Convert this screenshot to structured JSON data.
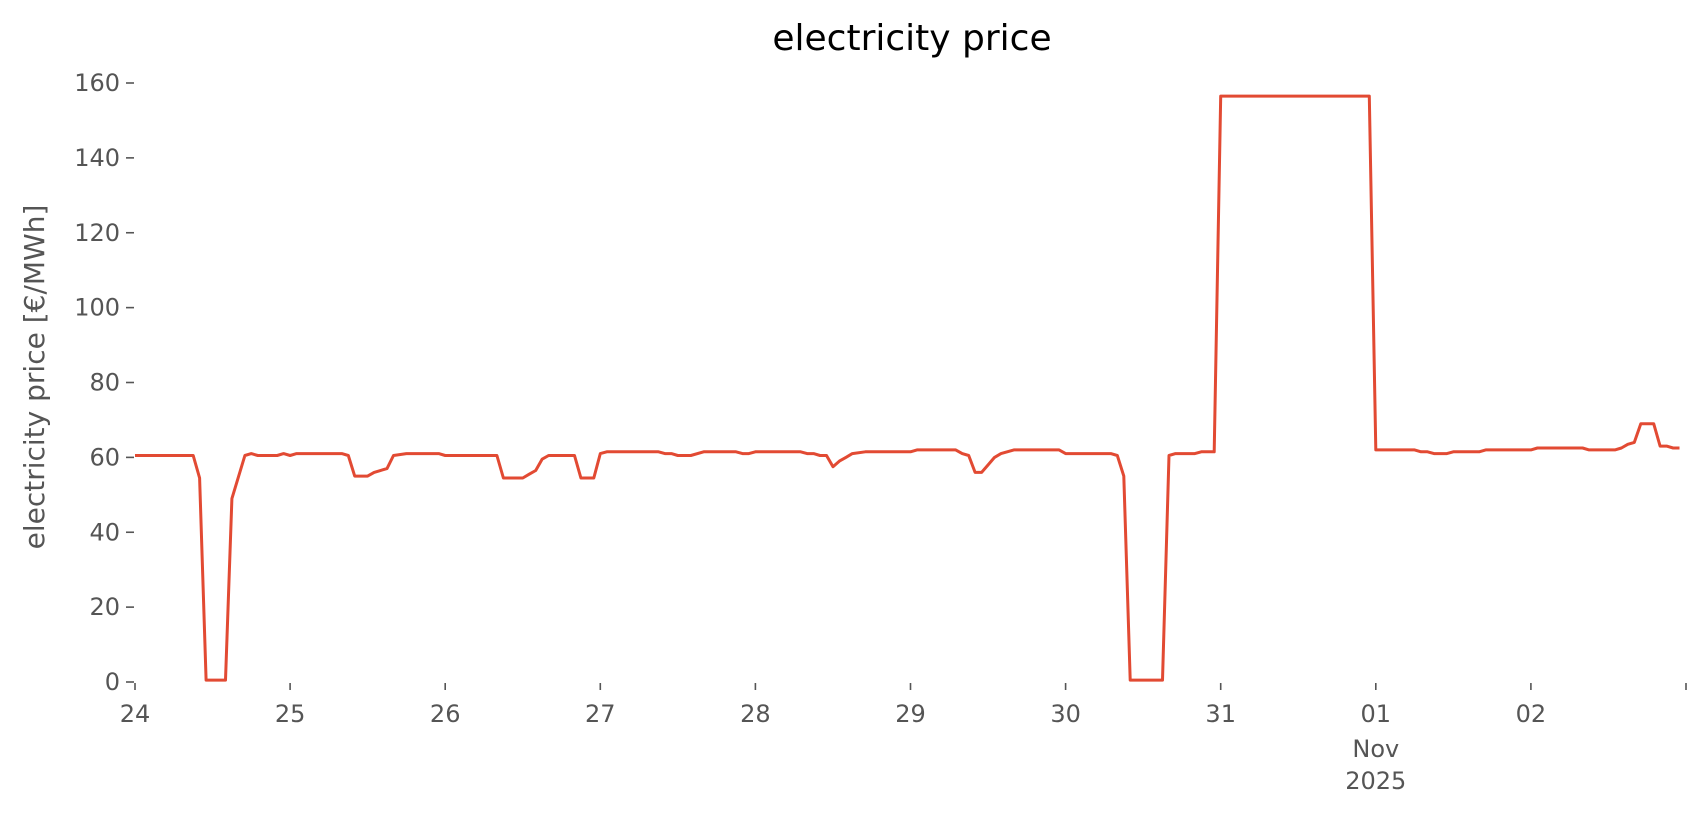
{
  "chart_data": {
    "type": "line",
    "title": "electricity price",
    "xlabel": "",
    "ylabel": "electricity price [€/MWh]",
    "ylim": [
      0,
      160
    ],
    "xlim": [
      "2025-10-24T00:00",
      "2025-11-03T00:00"
    ],
    "grid": false,
    "legend": "none",
    "y_ticks": [
      0,
      20,
      40,
      60,
      80,
      100,
      120,
      140,
      160
    ],
    "x_ticks": [
      {
        "x": "2025-10-24T00:00",
        "label": "24",
        "sub": ""
      },
      {
        "x": "2025-10-25T00:00",
        "label": "25",
        "sub": ""
      },
      {
        "x": "2025-10-26T00:00",
        "label": "26",
        "sub": ""
      },
      {
        "x": "2025-10-27T00:00",
        "label": "27",
        "sub": ""
      },
      {
        "x": "2025-10-28T00:00",
        "label": "28",
        "sub": ""
      },
      {
        "x": "2025-10-29T00:00",
        "label": "29",
        "sub": ""
      },
      {
        "x": "2025-10-30T00:00",
        "label": "30",
        "sub": ""
      },
      {
        "x": "2025-10-31T00:00",
        "label": "31",
        "sub": ""
      },
      {
        "x": "2025-11-01T00:00",
        "label": "01",
        "sub": "Nov\n2025"
      },
      {
        "x": "2025-11-02T00:00",
        "label": "02",
        "sub": ""
      },
      {
        "x": "2025-11-03T00:00",
        "label": "",
        "sub": ""
      }
    ],
    "series": [
      {
        "color": "#e24a33",
        "points": [
          [
            "2025-10-24T00:00",
            60.5
          ],
          [
            "2025-10-24T09:00",
            60.5
          ],
          [
            "2025-10-24T10:00",
            54.5
          ],
          [
            "2025-10-24T11:00",
            0.5
          ],
          [
            "2025-10-24T14:00",
            0.5
          ],
          [
            "2025-10-24T15:00",
            49.0
          ],
          [
            "2025-10-24T17:00",
            60.5
          ],
          [
            "2025-10-24T18:00",
            61.0
          ],
          [
            "2025-10-24T19:00",
            60.5
          ],
          [
            "2025-10-24T22:00",
            60.5
          ],
          [
            "2025-10-24T23:00",
            61.0
          ],
          [
            "2025-10-25T00:00",
            60.5
          ],
          [
            "2025-10-25T01:00",
            61.0
          ],
          [
            "2025-10-25T08:00",
            61.0
          ],
          [
            "2025-10-25T09:00",
            60.5
          ],
          [
            "2025-10-25T10:00",
            55.0
          ],
          [
            "2025-10-25T12:00",
            55.0
          ],
          [
            "2025-10-25T13:00",
            56.0
          ],
          [
            "2025-10-25T15:00",
            57.0
          ],
          [
            "2025-10-25T16:00",
            60.5
          ],
          [
            "2025-10-25T18:00",
            61.0
          ],
          [
            "2025-10-25T23:00",
            61.0
          ],
          [
            "2025-10-26T00:00",
            60.5
          ],
          [
            "2025-10-26T08:00",
            60.5
          ],
          [
            "2025-10-26T09:00",
            54.5
          ],
          [
            "2025-10-26T12:00",
            54.5
          ],
          [
            "2025-10-26T13:00",
            55.5
          ],
          [
            "2025-10-26T14:00",
            56.5
          ],
          [
            "2025-10-26T15:00",
            59.5
          ],
          [
            "2025-10-26T16:00",
            60.5
          ],
          [
            "2025-10-26T20:00",
            60.5
          ],
          [
            "2025-10-26T21:00",
            54.5
          ],
          [
            "2025-10-26T23:00",
            54.5
          ],
          [
            "2025-10-27T00:00",
            61.0
          ],
          [
            "2025-10-27T01:00",
            61.5
          ],
          [
            "2025-10-27T09:00",
            61.5
          ],
          [
            "2025-10-27T10:00",
            61.0
          ],
          [
            "2025-10-27T11:00",
            61.0
          ],
          [
            "2025-10-27T12:00",
            60.5
          ],
          [
            "2025-10-27T14:00",
            60.5
          ],
          [
            "2025-10-27T16:00",
            61.5
          ],
          [
            "2025-10-27T21:00",
            61.5
          ],
          [
            "2025-10-27T22:00",
            61.0
          ],
          [
            "2025-10-27T23:00",
            61.0
          ],
          [
            "2025-10-28T00:00",
            61.5
          ],
          [
            "2025-10-28T07:00",
            61.5
          ],
          [
            "2025-10-28T08:00",
            61.0
          ],
          [
            "2025-10-28T09:00",
            61.0
          ],
          [
            "2025-10-28T10:00",
            60.5
          ],
          [
            "2025-10-28T11:00",
            60.5
          ],
          [
            "2025-10-28T12:00",
            57.5
          ],
          [
            "2025-10-28T13:00",
            59.0
          ],
          [
            "2025-10-28T14:00",
            60.0
          ],
          [
            "2025-10-28T15:00",
            61.0
          ],
          [
            "2025-10-28T17:00",
            61.5
          ],
          [
            "2025-10-29T00:00",
            61.5
          ],
          [
            "2025-10-29T01:00",
            62.0
          ],
          [
            "2025-10-29T07:00",
            62.0
          ],
          [
            "2025-10-29T08:00",
            61.0
          ],
          [
            "2025-10-29T09:00",
            60.5
          ],
          [
            "2025-10-29T10:00",
            56.0
          ],
          [
            "2025-10-29T11:00",
            56.0
          ],
          [
            "2025-10-29T12:00",
            58.0
          ],
          [
            "2025-10-29T13:00",
            60.0
          ],
          [
            "2025-10-29T14:00",
            61.0
          ],
          [
            "2025-10-29T16:00",
            62.0
          ],
          [
            "2025-10-29T23:00",
            62.0
          ],
          [
            "2025-10-30T00:00",
            61.0
          ],
          [
            "2025-10-30T07:00",
            61.0
          ],
          [
            "2025-10-30T08:00",
            60.5
          ],
          [
            "2025-10-30T09:00",
            55.0
          ],
          [
            "2025-10-30T10:00",
            0.5
          ],
          [
            "2025-10-30T15:00",
            0.5
          ],
          [
            "2025-10-30T16:00",
            60.5
          ],
          [
            "2025-10-30T17:00",
            61.0
          ],
          [
            "2025-10-30T20:00",
            61.0
          ],
          [
            "2025-10-30T21:00",
            61.5
          ],
          [
            "2025-10-30T23:00",
            61.5
          ],
          [
            "2025-10-31T00:00",
            156.5
          ],
          [
            "2025-10-31T23:00",
            156.5
          ],
          [
            "2025-11-01T00:00",
            62.0
          ],
          [
            "2025-11-01T06:00",
            62.0
          ],
          [
            "2025-11-01T07:00",
            61.5
          ],
          [
            "2025-11-01T08:00",
            61.5
          ],
          [
            "2025-11-01T09:00",
            61.0
          ],
          [
            "2025-11-01T11:00",
            61.0
          ],
          [
            "2025-11-01T12:00",
            61.5
          ],
          [
            "2025-11-01T16:00",
            61.5
          ],
          [
            "2025-11-01T17:00",
            62.0
          ],
          [
            "2025-11-02T00:00",
            62.0
          ],
          [
            "2025-11-02T01:00",
            62.5
          ],
          [
            "2025-11-02T08:00",
            62.5
          ],
          [
            "2025-11-02T09:00",
            62.0
          ],
          [
            "2025-11-02T13:00",
            62.0
          ],
          [
            "2025-11-02T14:00",
            62.5
          ],
          [
            "2025-11-02T15:00",
            63.5
          ],
          [
            "2025-11-02T16:00",
            64.0
          ],
          [
            "2025-11-02T17:00",
            69.0
          ],
          [
            "2025-11-02T19:00",
            69.0
          ],
          [
            "2025-11-02T20:00",
            63.0
          ],
          [
            "2025-11-02T21:00",
            63.0
          ],
          [
            "2025-11-02T22:00",
            62.5
          ],
          [
            "2025-11-02T23:00",
            62.5
          ]
        ]
      }
    ]
  }
}
